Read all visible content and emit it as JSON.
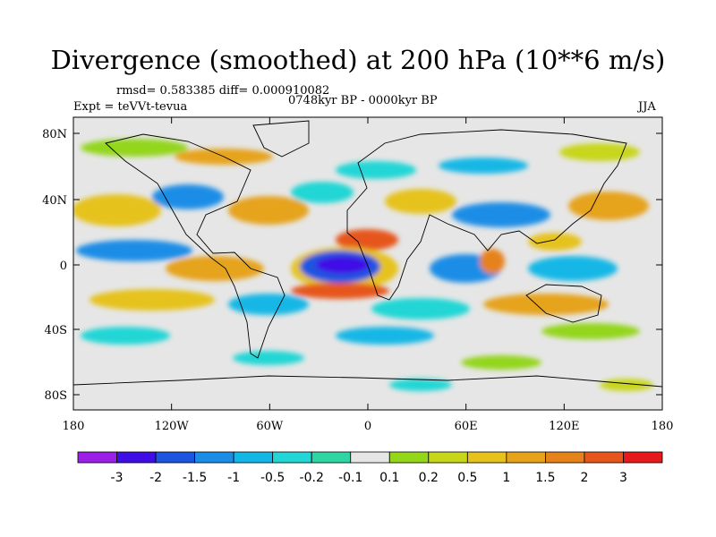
{
  "title": "Divergence (smoothed) at 200 hPa (10**6 m/s)",
  "stats": "rmsd= 0.583385 diff= 0.000910082",
  "experiment": "Expt = teVVt-tevua",
  "period": "0748kyr BP - 0000kyr BP",
  "season": "JJA",
  "map": {
    "lat_ticks": [
      "80N",
      "40N",
      "0",
      "40S",
      "80S"
    ],
    "lon_ticks": [
      "180",
      "120W",
      "60W",
      "0",
      "60E",
      "120E",
      "180"
    ],
    "ocean_color": "#e6e6e6",
    "coastline_color": "#000000"
  },
  "colorbar": {
    "colors": [
      "#9b1fe6",
      "#3f0ee6",
      "#1c55e0",
      "#1a8de6",
      "#13b7e6",
      "#22d6d6",
      "#2ed6a3",
      "#e6e6e6",
      "#93d61a",
      "#c8d61a",
      "#e6c21a",
      "#e6a31a",
      "#e6821a",
      "#e6561a",
      "#e61a1a"
    ],
    "labels": [
      "-3",
      "-2",
      "-1.5",
      "-1",
      "-0.5",
      "-0.2",
      "-0.1",
      "0.1",
      "0.2",
      "0.5",
      "1",
      "1.5",
      "2",
      "3"
    ]
  }
}
